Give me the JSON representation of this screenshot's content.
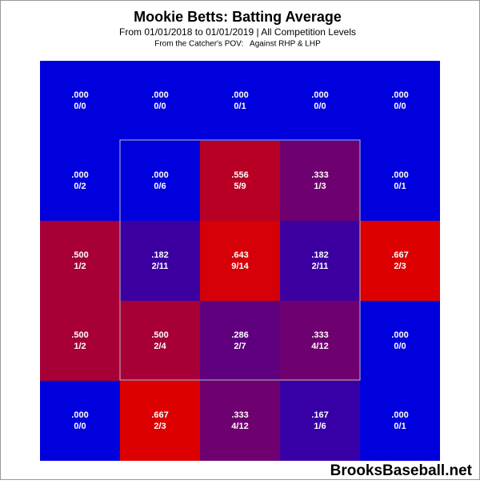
{
  "chart_data": {
    "type": "heatmap",
    "title": "Mookie Betts: Batting Average",
    "subtitle": "From 01/01/2018 to 01/01/2019 | All Competition Levels",
    "note": "From the Catcher's POV:   Against RHP & LHP",
    "watermark": "BrooksBaseball.net",
    "values": [
      [
        0,
        0,
        0,
        0,
        0
      ],
      [
        0,
        0,
        0.556,
        0.333,
        0
      ],
      [
        0.5,
        0.182,
        0.643,
        0.182,
        0.667
      ],
      [
        0.5,
        0.5,
        0.286,
        0.333,
        0
      ],
      [
        0,
        0.667,
        0.333,
        0.167,
        0
      ]
    ],
    "value_labels": [
      [
        ".000",
        ".000",
        ".000",
        ".000",
        ".000"
      ],
      [
        ".000",
        ".000",
        ".556",
        ".333",
        ".000"
      ],
      [
        ".500",
        ".182",
        ".643",
        ".182",
        ".667"
      ],
      [
        ".500",
        ".500",
        ".286",
        ".333",
        ".000"
      ],
      [
        ".000",
        ".667",
        ".333",
        ".167",
        ".000"
      ]
    ],
    "counts": [
      [
        "0/0",
        "0/0",
        "0/1",
        "0/0",
        "0/0"
      ],
      [
        "0/2",
        "0/6",
        "5/9",
        "1/3",
        "0/1"
      ],
      [
        "1/2",
        "2/11",
        "9/14",
        "2/11",
        "2/3"
      ],
      [
        "1/2",
        "2/4",
        "2/7",
        "4/12",
        "0/0"
      ],
      [
        "0/0",
        "2/3",
        "4/12",
        "1/6",
        "0/1"
      ]
    ],
    "colors": [
      "#0000dd",
      "#dd0000"
    ],
    "clim": [
      0,
      0.667
    ]
  }
}
